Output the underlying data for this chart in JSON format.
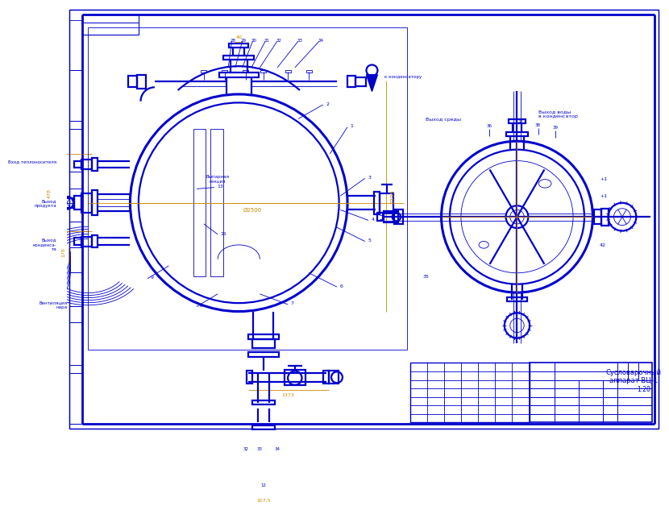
{
  "bg_color": "#ffffff",
  "bc": "#0000cc",
  "lc": "#0000cc",
  "dc": "#cc8800",
  "lw_main": 1.6,
  "lw_thin": 0.6,
  "lw_thick": 2.2,
  "lw_border": 2.0,
  "title_text1": "Сусловарочный",
  "title_text2": "аппарат ВЦ-1",
  "scale_text": "1:20"
}
